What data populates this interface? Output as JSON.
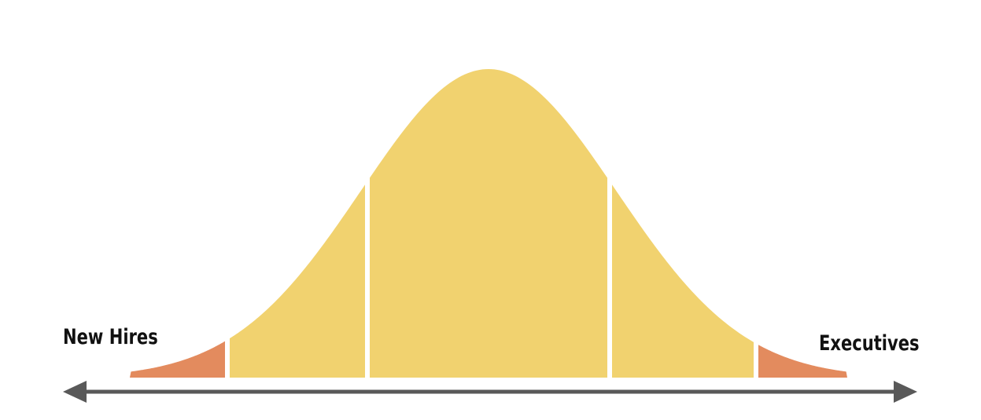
{
  "labels": {
    "left": "New Hires",
    "right": "Executives"
  },
  "colors": {
    "middle_segments": "#F1D26F",
    "tail_segments": "#E38B5E",
    "axis": "#595959",
    "segment_gap": "#FFFFFF"
  },
  "segments": [
    {
      "name": "segment-far-left",
      "color_key": "tail_segments"
    },
    {
      "name": "segment-left",
      "color_key": "middle_segments"
    },
    {
      "name": "segment-center",
      "color_key": "middle_segments"
    },
    {
      "name": "segment-right",
      "color_key": "middle_segments"
    },
    {
      "name": "segment-far-right",
      "color_key": "tail_segments"
    }
  ]
}
